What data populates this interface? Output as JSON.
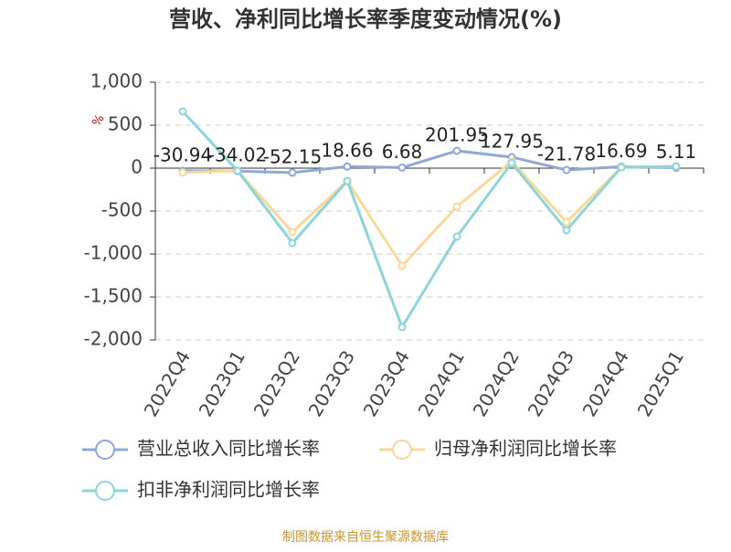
{
  "chart_data": {
    "type": "line",
    "title": "营收、净利同比增长率季度变动情况(%)",
    "y_label": "%",
    "categories": [
      "2022Q4",
      "2023Q1",
      "2023Q2",
      "2023Q3",
      "2023Q4",
      "2024Q1",
      "2024Q2",
      "2024Q3",
      "2024Q4",
      "2025Q1"
    ],
    "series": [
      {
        "name": "营业总收入同比增长率",
        "color": "#8fa8d8",
        "values": [
          -30.94,
          -34.02,
          -52.15,
          18.66,
          6.68,
          201.95,
          127.95,
          -21.78,
          16.69,
          5.11
        ]
      },
      {
        "name": "归母净利润同比增长率",
        "color": "#f8d99a",
        "values": [
          -50,
          -30,
          -745,
          -150,
          -1138,
          -447,
          80,
          -628,
          10,
          20
        ]
      },
      {
        "name": "扣非净利润同比增长率",
        "color": "#8dd5d8",
        "values": [
          660,
          -30,
          -872,
          -150,
          -1851,
          -798,
          60,
          -723,
          10,
          20
        ]
      }
    ],
    "ylim": [
      -2000,
      1000
    ],
    "yticks": [
      {
        "value": 1000,
        "label": "1,000"
      },
      500,
      0,
      -500,
      {
        "value": -1000,
        "label": "-1,000"
      },
      {
        "value": -1500,
        "label": "-1,500"
      },
      {
        "value": -2000,
        "label": "-2,000"
      }
    ],
    "grid": true,
    "source": "制图数据来自恒生聚源数据库"
  }
}
